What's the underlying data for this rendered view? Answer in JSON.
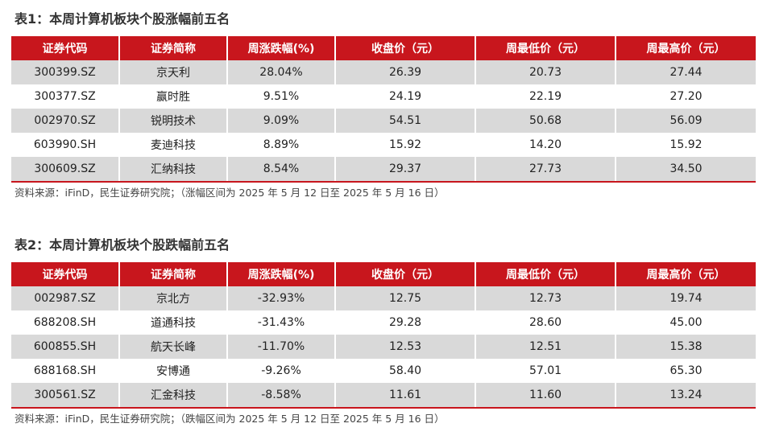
{
  "columns": [
    "证券代码",
    "证券简称",
    "周涨跌幅(%)",
    "收盘价（元）",
    "周最低价（元）",
    "周最高价（元）"
  ],
  "table1": {
    "title": "表1：本周计算机板块个股涨幅前五名",
    "rows": [
      [
        "300399.SZ",
        "京天利",
        "28.04%",
        "26.39",
        "20.73",
        "27.44"
      ],
      [
        "300377.SZ",
        "赢时胜",
        "9.51%",
        "24.19",
        "22.19",
        "27.20"
      ],
      [
        "002970.SZ",
        "锐明技术",
        "9.09%",
        "54.51",
        "50.68",
        "56.09"
      ],
      [
        "603990.SH",
        "麦迪科技",
        "8.89%",
        "15.92",
        "14.20",
        "15.92"
      ],
      [
        "300609.SZ",
        "汇纳科技",
        "8.54%",
        "29.37",
        "27.73",
        "34.50"
      ]
    ],
    "source": "资料来源：iFinD，民生证券研究院；（涨幅区间为 2025 年 5 月 12 日至 2025 年 5 月 16 日）"
  },
  "table2": {
    "title": "表2：本周计算机板块个股跌幅前五名",
    "rows": [
      [
        "002987.SZ",
        "京北方",
        "-32.93%",
        "12.75",
        "12.73",
        "19.74"
      ],
      [
        "688208.SH",
        "道通科技",
        "-31.43%",
        "29.28",
        "28.60",
        "45.00"
      ],
      [
        "600855.SH",
        "航天长峰",
        "-11.70%",
        "12.53",
        "12.51",
        "15.38"
      ],
      [
        "688168.SH",
        "安博通",
        "-9.26%",
        "58.40",
        "57.01",
        "65.30"
      ],
      [
        "300561.SZ",
        "汇金科技",
        "-8.58%",
        "11.61",
        "11.60",
        "13.24"
      ]
    ],
    "source": "资料来源：iFinD，民生证券研究院；（跌幅区间为 2025 年 5 月 12 日至 2025 年 5 月 16 日）"
  }
}
